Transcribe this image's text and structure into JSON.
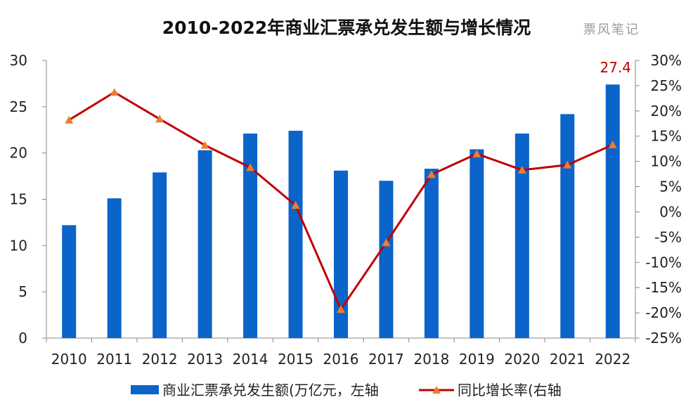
{
  "title": "2010-2022年商业汇票承兑发生额与增长情况",
  "watermark": "票风笔记",
  "colors": {
    "bar": "#0a64c9",
    "line": "#c00000",
    "marker": "#ed7d31",
    "axis": "#888888",
    "label": "#c00000"
  },
  "chart_data": {
    "type": "bar",
    "categories": [
      "2010",
      "2011",
      "2012",
      "2013",
      "2014",
      "2015",
      "2016",
      "2017",
      "2018",
      "2019",
      "2020",
      "2021",
      "2022"
    ],
    "series": [
      {
        "name": "商业汇票承兑发生额(万亿元，左轴",
        "type": "bar",
        "axis": "left",
        "values": [
          12.2,
          15.1,
          17.9,
          20.3,
          22.1,
          22.4,
          18.1,
          17.0,
          18.3,
          20.4,
          22.1,
          24.2,
          27.4
        ]
      },
      {
        "name": "同比增长率(右轴",
        "type": "line",
        "axis": "right",
        "marker": "triangle",
        "values": [
          18.2,
          23.7,
          18.4,
          13.2,
          8.8,
          1.3,
          -19.3,
          -6.1,
          7.4,
          11.5,
          8.3,
          9.3,
          13.3
        ]
      }
    ],
    "ylim_left": [
      0,
      30
    ],
    "yticks_left": [
      "0",
      "5",
      "10",
      "15",
      "20",
      "25",
      "30"
    ],
    "ylim_right": [
      -25,
      30
    ],
    "yticks_right": [
      "-25%",
      "-20%",
      "-15%",
      "-10%",
      "-5%",
      "0%",
      "5%",
      "10%",
      "15%",
      "20%",
      "25%",
      "30%"
    ],
    "data_labels": [
      {
        "category": "2022",
        "series": "bar",
        "text": "27.4"
      }
    ],
    "grid": false,
    "legend": "bottom"
  }
}
